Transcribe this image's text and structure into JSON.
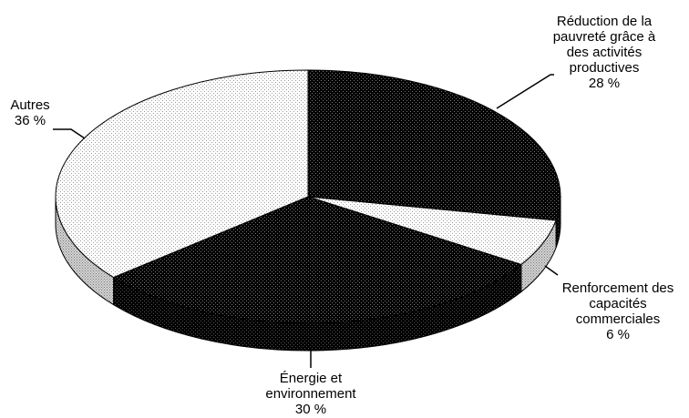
{
  "chart_data": {
    "type": "pie",
    "title": "",
    "slices": [
      {
        "label_lines": [
          "Réduction de la",
          "pauvreté grâce à",
          "des activités",
          "productives"
        ],
        "value_text": "28 %",
        "value": 28,
        "pattern": "dark"
      },
      {
        "label_lines": [
          "Renforcement des",
          "capacités",
          "commerciales"
        ],
        "value_text": "6 %",
        "value": 6,
        "pattern": "light"
      },
      {
        "label_lines": [
          "Énergie et",
          "environnement"
        ],
        "value_text": "30 %",
        "value": 30,
        "pattern": "dark"
      },
      {
        "label_lines": [
          "Autres"
        ],
        "value_text": "36 %",
        "value": 36,
        "pattern": "light"
      }
    ],
    "start_angle_deg": 0,
    "direction": "clockwise",
    "three_d": true,
    "legend": "none"
  }
}
